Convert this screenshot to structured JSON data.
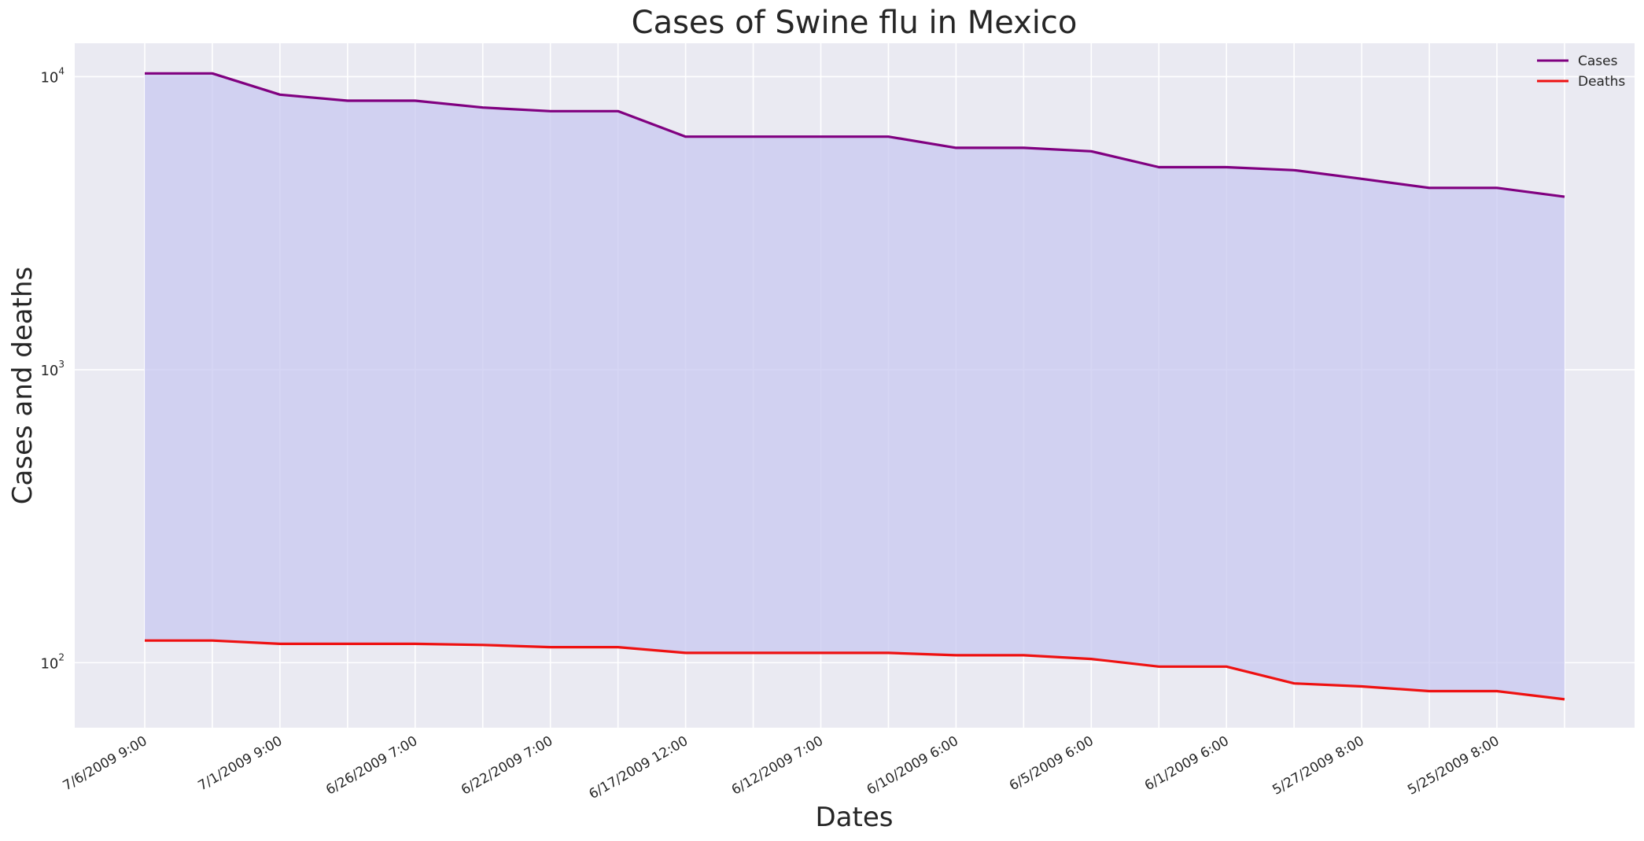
{
  "chart_data": {
    "type": "area",
    "title": "Cases of Swine flu in Mexico",
    "xlabel": "Dates",
    "ylabel": "Cases and deaths",
    "yscale": "log",
    "ylim": [
      60,
      13000
    ],
    "yticks": [
      {
        "value": 100,
        "base": "10",
        "exp": "2"
      },
      {
        "value": 1000,
        "base": "10",
        "exp": "3"
      },
      {
        "value": 10000,
        "base": "10",
        "exp": "4"
      }
    ],
    "xtick_labels": [
      "7/6/2009 9:00",
      "7/1/2009 9:00",
      "6/26/2009 7:00",
      "6/22/2009 7:00",
      "6/17/2009 12:00",
      "6/12/2009 7:00",
      "6/10/2009 6:00",
      "6/5/2009 6:00",
      "6/1/2009 6:00",
      "5/27/2009 8:00",
      "5/25/2009 8:00"
    ],
    "grid": true,
    "legend_position": "top-right",
    "fill_color": "#c8c8f0",
    "background": "#eaeaf2",
    "series": [
      {
        "name": "Cases",
        "color": "#800080",
        "values": [
          10262,
          10262,
          8680,
          8279,
          8279,
          7847,
          7624,
          7624,
          6241,
          6241,
          6241,
          6241,
          5717,
          5717,
          5563,
          4910,
          4910,
          4796,
          4482,
          4174,
          4174,
          3892
        ]
      },
      {
        "name": "Deaths",
        "color": "#ee1111",
        "values": [
          119,
          119,
          116,
          116,
          116,
          115,
          113,
          113,
          108,
          108,
          108,
          108,
          106,
          106,
          103,
          97,
          97,
          85,
          83,
          80,
          80,
          75
        ]
      }
    ]
  }
}
